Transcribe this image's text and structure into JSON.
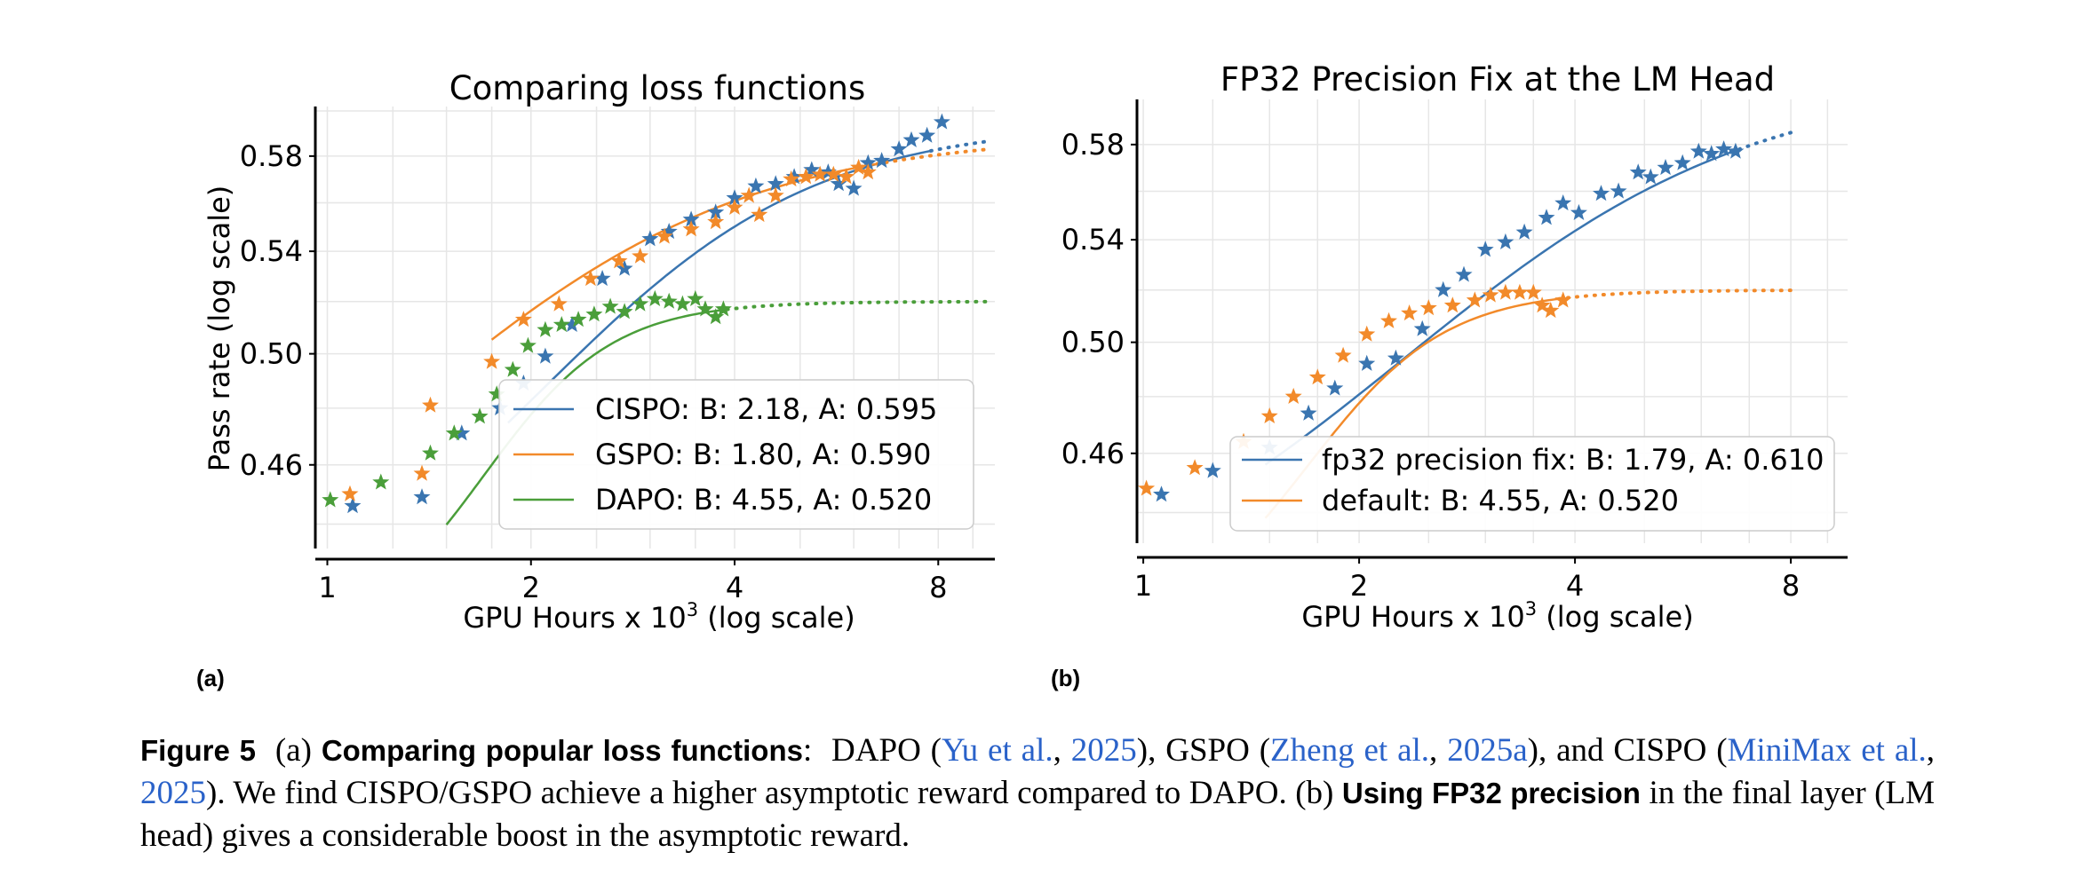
{
  "colors": {
    "cispo": "#3a75b0",
    "gspo": "#f28a2a",
    "dapo": "#4a9e3a",
    "grid": "#e6e6e6",
    "link": "#2a62c9"
  },
  "chart_data": [
    {
      "id": "a",
      "panel_label": "(a)",
      "type": "scatter",
      "title": "Comparing loss functions",
      "xlabel_pre": "GPU Hours x 10",
      "xlabel_sup": "3",
      "xlabel_post": " (log scale)",
      "ylabel": "Pass rate (log scale)",
      "xscale": "log",
      "yscale": "log",
      "xlim": [
        0.96,
        9.7
      ],
      "ylim": [
        0.432,
        0.602
      ],
      "xticks": [
        1,
        2,
        4,
        8
      ],
      "xtick_labels": [
        "1",
        "2",
        "4",
        "8"
      ],
      "yticks": [
        0.46,
        0.5,
        0.54,
        0.58
      ],
      "ytick_labels": [
        "0.46",
        "0.50",
        "0.54",
        "0.58"
      ],
      "grid": true,
      "legend_position": "lower-right",
      "series": [
        {
          "name": "CISPO",
          "legend": "CISPO: B: 2.18, A: 0.595",
          "color_key": "cispo",
          "fit": {
            "A": 0.595,
            "B": 2.18,
            "C_mid": 2.3,
            "R0": 0.4,
            "start": 1.85,
            "end_solid": 7.8,
            "end_dotted": 9.4
          },
          "x": [
            1.09,
            1.38,
            1.58,
            1.8,
            1.95,
            2.1,
            2.3,
            2.55,
            2.75,
            3.0,
            3.2,
            3.45,
            3.75,
            4.0,
            4.3,
            4.6,
            4.9,
            5.2,
            5.5,
            5.7,
            6.0,
            6.3,
            6.6,
            7.0,
            7.3,
            7.7,
            8.1
          ],
          "y": [
            0.446,
            0.449,
            0.471,
            0.48,
            0.489,
            0.499,
            0.511,
            0.529,
            0.533,
            0.545,
            0.548,
            0.553,
            0.556,
            0.562,
            0.567,
            0.568,
            0.571,
            0.574,
            0.573,
            0.568,
            0.566,
            0.577,
            0.578,
            0.583,
            0.587,
            0.589,
            0.595
          ]
        },
        {
          "name": "GSPO",
          "legend": "GSPO: B: 1.80, A: 0.590",
          "color_key": "gspo",
          "fit": {
            "A": 0.59,
            "B": 1.8,
            "C_mid": 1.55,
            "R0": 0.4,
            "start": 1.75,
            "end_solid": 6.5,
            "end_dotted": 9.4
          },
          "x": [
            1.08,
            1.38,
            1.42,
            1.75,
            1.95,
            2.2,
            2.45,
            2.7,
            2.9,
            3.15,
            3.45,
            3.75,
            4.0,
            4.2,
            4.35,
            4.6,
            4.85,
            5.1,
            5.35,
            5.6,
            5.85,
            6.1,
            6.3
          ],
          "y": [
            0.45,
            0.457,
            0.481,
            0.497,
            0.513,
            0.519,
            0.529,
            0.536,
            0.538,
            0.546,
            0.549,
            0.552,
            0.558,
            0.563,
            0.555,
            0.563,
            0.57,
            0.571,
            0.572,
            0.572,
            0.571,
            0.575,
            0.573
          ]
        },
        {
          "name": "DAPO",
          "legend": "DAPO: B: 4.55, A: 0.520",
          "color_key": "dapo",
          "fit": {
            "A": 0.52,
            "B": 4.55,
            "C_mid": 1.75,
            "R0": 0.4,
            "start": 1.5,
            "end_solid": 3.9,
            "end_dotted": 9.4
          },
          "x": [
            1.01,
            1.2,
            1.42,
            1.54,
            1.68,
            1.78,
            1.88,
            1.98,
            2.1,
            2.22,
            2.35,
            2.48,
            2.62,
            2.75,
            2.9,
            3.05,
            3.2,
            3.35,
            3.5,
            3.62,
            3.75,
            3.85
          ],
          "y": [
            0.448,
            0.454,
            0.464,
            0.471,
            0.477,
            0.485,
            0.494,
            0.503,
            0.509,
            0.511,
            0.513,
            0.515,
            0.518,
            0.516,
            0.519,
            0.521,
            0.52,
            0.519,
            0.521,
            0.517,
            0.514,
            0.517
          ]
        }
      ]
    },
    {
      "id": "b",
      "panel_label": "(b)",
      "type": "scatter",
      "title": "FP32 Precision Fix at the LM Head",
      "xlabel_pre": "GPU Hours x 10",
      "xlabel_sup": "3",
      "xlabel_post": " (log scale)",
      "ylabel": "",
      "xscale": "log",
      "yscale": "log",
      "xlim": [
        0.98,
        9.6
      ],
      "ylim": [
        0.43,
        0.6
      ],
      "xticks": [
        1,
        2,
        4,
        8
      ],
      "xtick_labels": [
        "1",
        "2",
        "4",
        "8"
      ],
      "yticks": [
        0.46,
        0.5,
        0.54,
        0.58
      ],
      "ytick_labels": [
        "0.46",
        "0.50",
        "0.54",
        "0.58"
      ],
      "grid": true,
      "legend_position": "lower-right",
      "series": [
        {
          "name": "fp32 precision fix",
          "legend": "fp32 precision fix: B: 1.79, A: 0.610",
          "color_key": "cispo",
          "fit": {
            "A": 0.61,
            "B": 1.79,
            "C_mid": 2.6,
            "R0": 0.4,
            "start": 1.48,
            "end_solid": 6.6,
            "end_dotted": 8.0
          },
          "x": [
            1.06,
            1.25,
            1.5,
            1.7,
            1.85,
            2.05,
            2.25,
            2.45,
            2.62,
            2.8,
            3.0,
            3.2,
            3.4,
            3.65,
            3.85,
            4.05,
            4.35,
            4.6,
            4.9,
            5.1,
            5.35,
            5.65,
            5.95,
            6.2,
            6.45,
            6.7
          ],
          "y": [
            0.446,
            0.454,
            0.462,
            0.474,
            0.483,
            0.492,
            0.494,
            0.505,
            0.52,
            0.526,
            0.536,
            0.539,
            0.543,
            0.549,
            0.555,
            0.551,
            0.559,
            0.56,
            0.568,
            0.566,
            0.57,
            0.572,
            0.577,
            0.576,
            0.578,
            0.577
          ]
        },
        {
          "name": "default",
          "legend": "default: B: 4.55, A: 0.520",
          "color_key": "gspo",
          "fit": {
            "A": 0.52,
            "B": 4.55,
            "C_mid": 1.75,
            "R0": 0.4,
            "start": 1.48,
            "end_solid": 3.8,
            "end_dotted": 8.0
          },
          "x": [
            1.01,
            1.18,
            1.38,
            1.5,
            1.62,
            1.75,
            1.9,
            2.05,
            2.2,
            2.35,
            2.5,
            2.7,
            2.9,
            3.05,
            3.2,
            3.35,
            3.5,
            3.6,
            3.7,
            3.85
          ],
          "y": [
            0.448,
            0.455,
            0.464,
            0.473,
            0.48,
            0.487,
            0.495,
            0.503,
            0.508,
            0.511,
            0.513,
            0.514,
            0.516,
            0.518,
            0.519,
            0.519,
            0.519,
            0.514,
            0.512,
            0.516
          ]
        }
      ]
    }
  ],
  "caption": {
    "figure_label": "Figure 5",
    "part_a": "(a)",
    "bold_a": "Comparing popular loss functions",
    "colon": ":",
    "dapo_open": "DAPO (",
    "ref1_authors": "Yu et al.",
    "ref1_year": "2025",
    "gspo_open": "), GSPO (",
    "ref2_authors": "Zheng et al.",
    "ref2_year": "2025a",
    "cispo_open": "), and CISPO (",
    "ref3_authors": "MiniMax et al.",
    "ref3_year": "2025",
    "sentence": "). We find CISPO/GSPO achieve a higher asymptotic reward compared to DAPO.",
    "part_b": "(b)",
    "bold_b": "Using FP32 precision",
    "ending": "in the final layer (LM head) gives a considerable boost in the asymptotic reward."
  }
}
